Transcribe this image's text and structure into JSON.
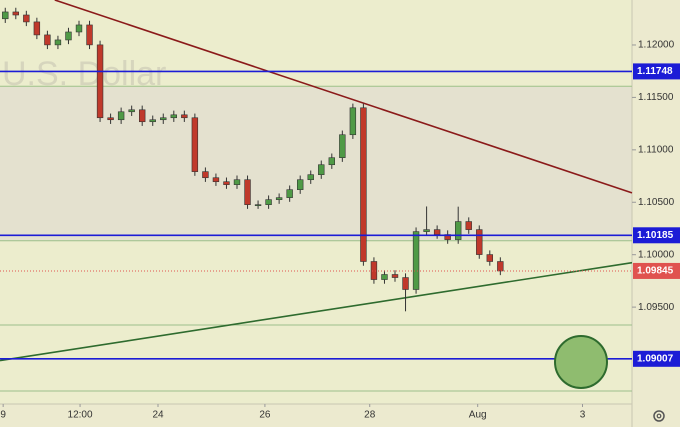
{
  "chart_data": {
    "type": "candlestick",
    "watermark": "U.S. Dollar",
    "x": [
      1,
      3,
      5,
      7,
      9,
      11,
      13,
      15,
      17,
      19,
      21,
      23,
      25,
      27,
      29,
      31,
      33,
      35,
      37,
      39,
      41,
      43,
      45,
      47,
      49,
      51,
      53,
      55,
      57,
      59,
      61,
      63,
      65,
      67,
      69,
      71,
      73,
      75,
      77,
      79,
      81,
      83,
      85,
      87,
      89,
      91,
      93,
      95
    ],
    "open": [
      1.1225,
      1.12315,
      1.12286,
      1.1222,
      1.12096,
      1.12001,
      1.12048,
      1.12124,
      1.12191,
      1.12001,
      1.11306,
      1.11287,
      1.11363,
      1.11382,
      1.11268,
      1.11287,
      1.11306,
      1.11334,
      1.11306,
      1.10792,
      1.10734,
      1.10696,
      1.10668,
      1.10715,
      1.10477,
      1.10477,
      1.10525,
      1.10544,
      1.1062,
      1.10715,
      1.10763,
      1.10858,
      1.10925,
      1.11144,
      1.11401,
      1.09935,
      1.09763,
      1.09811,
      1.09782,
      1.09668,
      1.1022,
      1.10239,
      1.10192,
      1.10144,
      1.10316,
      1.10239,
      1.10001,
      1.09935
    ],
    "high": [
      1.12355,
      1.12355,
      1.12326,
      1.1226,
      1.12136,
      1.12088,
      1.12164,
      1.12231,
      1.12231,
      1.12041,
      1.11346,
      1.11403,
      1.11422,
      1.11422,
      1.11327,
      1.11346,
      1.11374,
      1.11374,
      1.11346,
      1.10832,
      1.10774,
      1.10736,
      1.10755,
      1.10755,
      1.10517,
      1.10565,
      1.10584,
      1.1066,
      1.10755,
      1.10803,
      1.10898,
      1.10965,
      1.11184,
      1.11441,
      1.11441,
      1.09975,
      1.09851,
      1.09851,
      1.09822,
      1.1026,
      1.1046,
      1.10279,
      1.10232,
      1.10458,
      1.10356,
      1.10279,
      1.10041,
      1.09975
    ],
    "low": [
      1.1221,
      1.12246,
      1.1218,
      1.12056,
      1.11961,
      1.11961,
      1.12008,
      1.12084,
      1.11961,
      1.11266,
      1.11247,
      1.11247,
      1.11323,
      1.11228,
      1.11228,
      1.11247,
      1.11266,
      1.11266,
      1.10752,
      1.10694,
      1.10656,
      1.10628,
      1.10628,
      1.10437,
      1.10437,
      1.10437,
      1.10485,
      1.10504,
      1.1058,
      1.10675,
      1.10723,
      1.10818,
      1.10885,
      1.11104,
      1.09895,
      1.09723,
      1.09723,
      1.09742,
      1.0946,
      1.09628,
      1.1018,
      1.10152,
      1.10104,
      1.10104,
      1.10199,
      1.09961,
      1.09895,
      1.09805
    ],
    "close": [
      1.12315,
      1.12286,
      1.1222,
      1.12096,
      1.12001,
      1.12048,
      1.12124,
      1.12191,
      1.12001,
      1.11306,
      1.11287,
      1.11363,
      1.11382,
      1.11268,
      1.11287,
      1.11306,
      1.11334,
      1.11306,
      1.10792,
      1.10734,
      1.10696,
      1.10668,
      1.10715,
      1.10477,
      1.10477,
      1.10525,
      1.10544,
      1.1062,
      1.10715,
      1.10763,
      1.10858,
      1.10925,
      1.11144,
      1.11401,
      1.09935,
      1.09763,
      1.09811,
      1.09782,
      1.09668,
      1.1022,
      1.10239,
      1.10192,
      1.10144,
      1.10316,
      1.10239,
      1.10001,
      1.09935,
      1.09845
    ],
    "up_color": "#4f9a46",
    "down_color": "#c0392b",
    "xlim": [
      0,
      120
    ],
    "xticks": [
      {
        "value": 0.6,
        "label": "9"
      },
      {
        "value": 15.2,
        "label": "12:00"
      },
      {
        "value": 30,
        "label": "24"
      },
      {
        "value": 50.3,
        "label": "26"
      },
      {
        "value": 70.2,
        "label": "28"
      },
      {
        "value": 90.7,
        "label": "Aug"
      },
      {
        "value": 110.6,
        "label": "3"
      }
    ],
    "ylim": [
      1.08576,
      1.12429
    ],
    "yticks": [
      {
        "value": 1.12,
        "label": "1.12000"
      },
      {
        "value": 1.115,
        "label": "1.11500"
      },
      {
        "value": 1.11,
        "label": "1.11000"
      },
      {
        "value": 1.105,
        "label": "1.10500"
      },
      {
        "value": 1.1,
        "label": "1.10000"
      },
      {
        "value": 1.095,
        "label": "1.09500"
      }
    ],
    "levels": [
      {
        "value": 1.11748,
        "color": "#1c1cd6"
      },
      {
        "value": 1.10185,
        "color": "#1c1cd6"
      },
      {
        "value": 1.09007,
        "color": "#1c1cd6"
      }
    ],
    "last_price": {
      "value": 1.09845,
      "color": "#e0524f"
    },
    "guides": {
      "values": [
        1.11606,
        1.10133,
        1.09329,
        1.087
      ],
      "color": "#9cbf8a"
    },
    "trendlines": [
      {
        "color": "#8b1a1a",
        "x": [
          10.4,
          120
        ],
        "y": [
          1.12429,
          1.1059
        ]
      },
      {
        "color": "#2e6b2e",
        "x": [
          0,
          120
        ],
        "y": [
          1.0899,
          1.09924
        ]
      }
    ]
  }
}
